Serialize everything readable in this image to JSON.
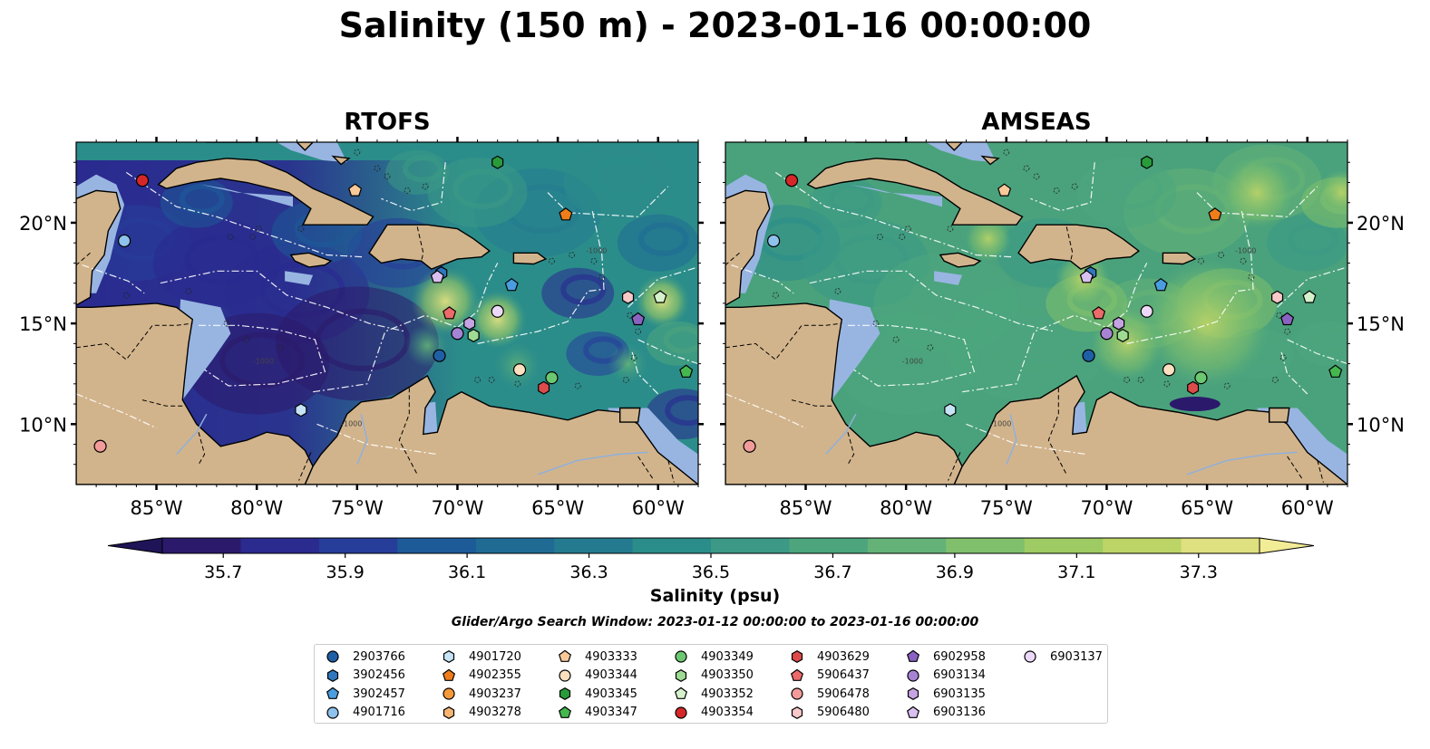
{
  "figure": {
    "title": "Salinity (150 m) - 2023-01-16 00:00:00",
    "search_window": "Glider/Argo Search Window: 2023-01-12 00:00:00 to 2023-01-16 00:00:00"
  },
  "colors": {
    "land": "#d2b48c",
    "shelf_water": "#98b5e2",
    "rtofs_background": "#2b8d8a",
    "amseas_background": "#4aa27c"
  },
  "map": {
    "extent": {
      "lon": [
        -89,
        -58
      ],
      "lat": [
        7,
        24
      ]
    },
    "lon_ticks": [
      "85°W",
      "80°W",
      "75°W",
      "70°W",
      "65°W",
      "60°W"
    ],
    "lat_ticks": [
      "20°N",
      "15°N",
      "10°N"
    ],
    "panels": [
      {
        "title": "RTOFS",
        "variant": "rtofs"
      },
      {
        "title": "AMSEAS",
        "variant": "amseas"
      }
    ],
    "contour_label": "-1000"
  },
  "colorbar": {
    "label": "Salinity (psu)",
    "min": 35.6,
    "max": 37.4,
    "ticks": [
      "35.7",
      "35.9",
      "36.1",
      "36.3",
      "36.5",
      "36.7",
      "36.9",
      "37.1",
      "37.3"
    ],
    "extend": "both",
    "colors": [
      "#2b1a6b",
      "#2a2a8f",
      "#263e9a",
      "#1d5a98",
      "#1f6b94",
      "#247b8f",
      "#2b8d8a",
      "#3b9986",
      "#4ca57d",
      "#64b277",
      "#80c06c",
      "#9ecb63",
      "#bdd467",
      "#dfe080"
    ]
  },
  "markers": [
    {
      "id": "2903766",
      "shape": "circle",
      "color": "#1f5fa6",
      "lon": -70.9,
      "lat": 13.4
    },
    {
      "id": "3902456",
      "shape": "hexagon",
      "color": "#2f78bd",
      "lon": -70.8,
      "lat": 17.5
    },
    {
      "id": "3902457",
      "shape": "pentagon",
      "color": "#4a9de0",
      "lon": -67.3,
      "lat": 16.9
    },
    {
      "id": "4901716",
      "shape": "circle",
      "color": "#8fc2ec",
      "lon": -86.6,
      "lat": 19.1
    },
    {
      "id": "4901720",
      "shape": "hexagon",
      "color": "#c7e3f6",
      "lon": -77.8,
      "lat": 10.7
    },
    {
      "id": "4902355",
      "shape": "pentagon",
      "color": "#ef7d1a",
      "lon": -64.6,
      "lat": 20.4
    },
    {
      "id": "4903237",
      "shape": "circle",
      "color": "#f59a3a",
      "lon": null,
      "lat": null
    },
    {
      "id": "4903278",
      "shape": "hexagon",
      "color": "#f7b573",
      "lon": null,
      "lat": null
    },
    {
      "id": "4903333",
      "shape": "pentagon",
      "color": "#f9c99a",
      "lon": -75.1,
      "lat": 21.6
    },
    {
      "id": "4903344",
      "shape": "circle",
      "color": "#fde0c0",
      "lon": -66.9,
      "lat": 12.7
    },
    {
      "id": "4903345",
      "shape": "hexagon",
      "color": "#2a9b3b",
      "lon": -68.0,
      "lat": 23.0
    },
    {
      "id": "4903347",
      "shape": "pentagon",
      "color": "#44b84f",
      "lon": -58.6,
      "lat": 12.6
    },
    {
      "id": "4903349",
      "shape": "circle",
      "color": "#6cc870",
      "lon": -65.3,
      "lat": 12.3
    },
    {
      "id": "4903350",
      "shape": "hexagon",
      "color": "#9fdc93",
      "lon": -69.2,
      "lat": 14.4
    },
    {
      "id": "4903352",
      "shape": "pentagon",
      "color": "#d5f2cc",
      "lon": -59.9,
      "lat": 16.3
    },
    {
      "id": "4903354",
      "shape": "circle",
      "color": "#d62728",
      "lon": -85.7,
      "lat": 22.1
    },
    {
      "id": "4903629",
      "shape": "hexagon",
      "color": "#dd4b4b",
      "lon": -65.7,
      "lat": 11.8
    },
    {
      "id": "5906437",
      "shape": "pentagon",
      "color": "#ec6a6a",
      "lon": -70.4,
      "lat": 15.5
    },
    {
      "id": "5906478",
      "shape": "circle",
      "color": "#f39a9a",
      "lon": -87.8,
      "lat": 8.9
    },
    {
      "id": "5906480",
      "shape": "hexagon",
      "color": "#f9c8c8",
      "lon": -61.5,
      "lat": 16.3
    },
    {
      "id": "6902958",
      "shape": "pentagon",
      "color": "#8a63c2",
      "lon": -61.0,
      "lat": 15.2
    },
    {
      "id": "6903134",
      "shape": "circle",
      "color": "#a783d4",
      "lon": -70.0,
      "lat": 14.5
    },
    {
      "id": "6903135",
      "shape": "hexagon",
      "color": "#c4a3e3",
      "lon": -69.4,
      "lat": 15.0
    },
    {
      "id": "6903136",
      "shape": "pentagon",
      "color": "#d9c0f0",
      "lon": -71.0,
      "lat": 17.3
    },
    {
      "id": "6903137",
      "shape": "circle",
      "color": "#ecd9f8",
      "lon": -68.0,
      "lat": 15.6
    }
  ]
}
